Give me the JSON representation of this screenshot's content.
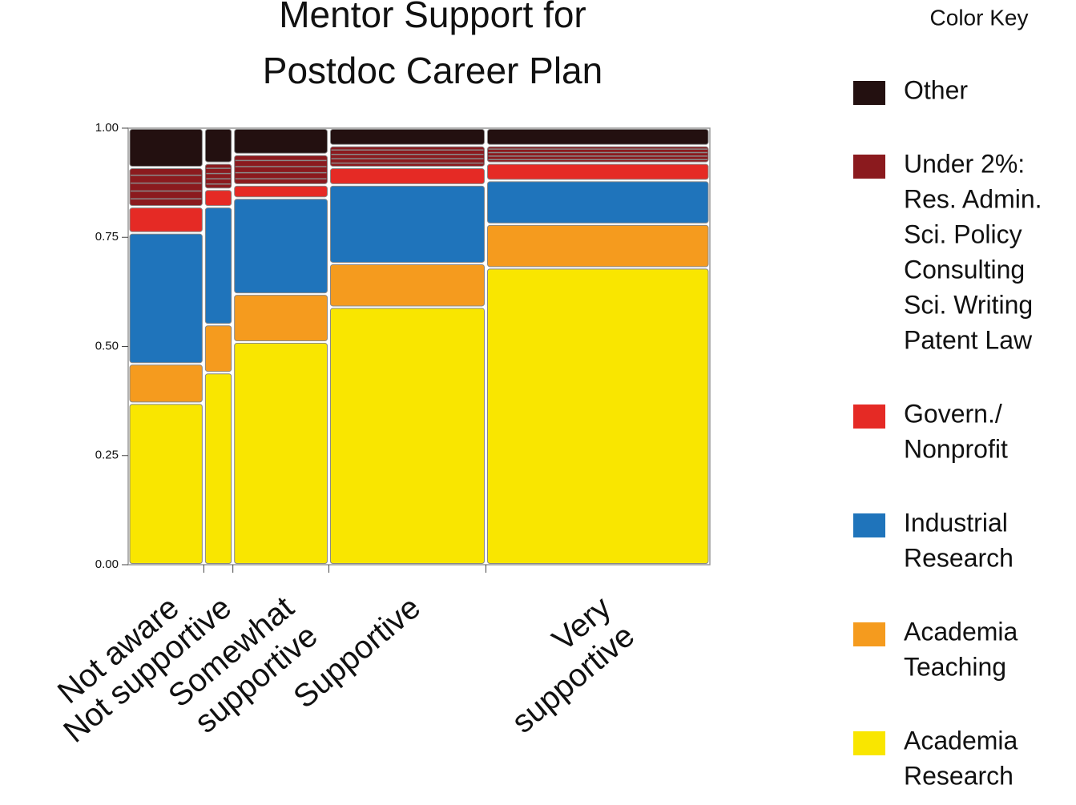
{
  "chart_data": {
    "type": "mosaic",
    "title": [
      "Mentor Support for",
      "Postdoc Career Plan"
    ],
    "legend_title": "Color Key",
    "categories": [
      [
        "Not aware"
      ],
      [
        "Not supportive"
      ],
      [
        "Somewhat",
        "supportive"
      ],
      [
        "Supportive"
      ],
      [
        "Very",
        "supportive"
      ]
    ],
    "widths": [
      0.13,
      0.05,
      0.165,
      0.27,
      0.385
    ],
    "series": [
      {
        "name": [
          "Academia",
          "Research"
        ],
        "color": "#f9e600",
        "values": [
          0.37,
          0.44,
          0.51,
          0.59,
          0.68
        ]
      },
      {
        "name": [
          "Academia",
          "Teaching"
        ],
        "color": "#f59b1e",
        "values": [
          0.09,
          0.11,
          0.11,
          0.1,
          0.1
        ]
      },
      {
        "name": [
          "Industrial",
          "Research"
        ],
        "color": "#1f74bb",
        "values": [
          0.3,
          0.27,
          0.22,
          0.18,
          0.1
        ]
      },
      {
        "name": [
          "Govern./",
          "Nonprofit"
        ],
        "color": "#e52a25",
        "values": [
          0.06,
          0.04,
          0.03,
          0.04,
          0.04
        ]
      },
      {
        "name": [
          "Under 2%:",
          "Res. Admin.",
          "Sci. Policy",
          "Consulting",
          "Sci. Writing",
          "Patent Law"
        ],
        "color": "#8b1a1e",
        "values": [
          0.09,
          0.06,
          0.07,
          0.05,
          0.04
        ]
      },
      {
        "name": [
          "Other"
        ],
        "color": "#231010",
        "values": [
          0.09,
          0.08,
          0.06,
          0.04,
          0.04
        ]
      }
    ],
    "xlim": [
      0,
      1
    ],
    "ylim": [
      0,
      1
    ],
    "yticks": [
      {
        "value": 0,
        "label": "0.00"
      },
      {
        "value": 0.25,
        "label": "0.25"
      },
      {
        "value": 0.5,
        "label": "0.50"
      },
      {
        "value": 0.75,
        "label": "0.75"
      },
      {
        "value": 1,
        "label": "1.00"
      }
    ]
  }
}
